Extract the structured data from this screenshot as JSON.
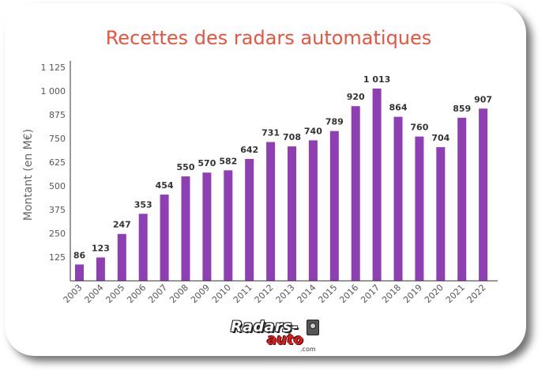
{
  "chart_data": {
    "type": "bar",
    "title": "Recettes des radars automatiques",
    "ylabel": "Montant (en M€)",
    "xlabel": "",
    "categories": [
      "2003",
      "2004",
      "2005",
      "2006",
      "2007",
      "2008",
      "2009",
      "2010",
      "2011",
      "2012",
      "2013",
      "2014",
      "2015",
      "2016",
      "2017",
      "2018",
      "2019",
      "2020",
      "2021",
      "2022"
    ],
    "values": [
      86,
      123,
      247,
      353,
      454,
      550,
      570,
      582,
      642,
      731,
      708,
      740,
      789,
      920,
      1013,
      864,
      760,
      704,
      859,
      907
    ],
    "value_labels": [
      "86",
      "123",
      "247",
      "353",
      "454",
      "550",
      "570",
      "582",
      "642",
      "731",
      "708",
      "740",
      "789",
      "920",
      "1 013",
      "864",
      "760",
      "704",
      "859",
      "907"
    ],
    "yticks": [
      125,
      250,
      375,
      500,
      625,
      750,
      875,
      1000,
      1125
    ],
    "ytick_labels": [
      "125",
      "250",
      "375",
      "500",
      "625",
      "750",
      "875",
      "1 000",
      "1 125"
    ],
    "ylim": [
      0,
      1125
    ],
    "grid": false,
    "bar_color": "#8e3fb3"
  },
  "logo": {
    "main": "Radars-",
    "sub": "auto",
    "domain": ".com",
    "icon": "speed-camera-icon"
  }
}
